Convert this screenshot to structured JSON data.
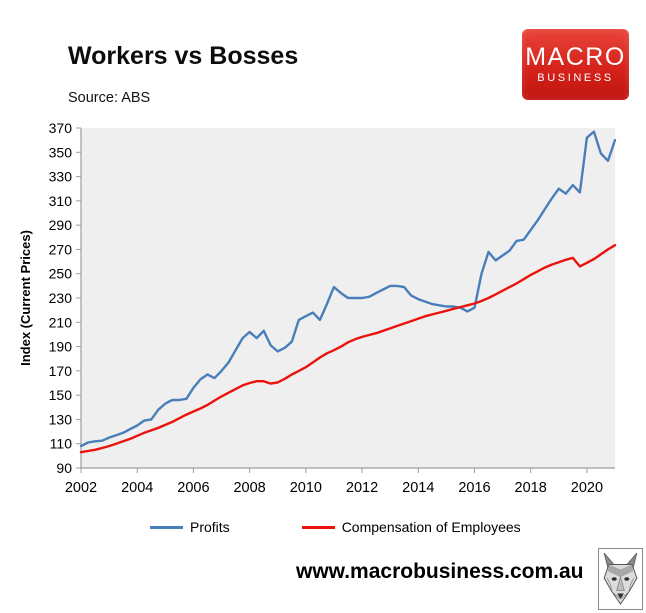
{
  "header": {
    "title": "Workers vs Bosses",
    "source": "Source: ABS",
    "logo": {
      "line1": "MACRO",
      "line2": "BUSINESS",
      "bg_color": "#d6231b",
      "text_color": "#ffffff"
    }
  },
  "chart_data": {
    "type": "line",
    "title": "Workers vs Bosses",
    "xlabel": "",
    "ylabel": "Index (Current Prices)",
    "ylim": [
      90,
      370
    ],
    "ytick_step": 20,
    "xlim": [
      2002,
      2021
    ],
    "xticks": [
      2002,
      2004,
      2006,
      2008,
      2010,
      2012,
      2014,
      2016,
      2018,
      2020
    ],
    "x_start": 2002,
    "x_step": 0.25,
    "grid": false,
    "plot_bg": "#efefef",
    "axis_color": "#9e9e9e",
    "legend_position": "bottom",
    "series": [
      {
        "name": "Profits",
        "color": "#4a7ebb",
        "values": [
          108,
          111,
          112,
          112.5,
          115,
          117,
          119,
          122,
          125,
          129,
          130,
          138,
          143,
          146,
          146,
          147,
          156,
          163,
          167,
          164,
          170,
          177,
          187,
          197,
          202,
          197,
          203,
          191,
          186,
          189,
          194,
          212,
          215,
          218,
          212,
          225,
          239,
          234,
          230,
          230,
          230,
          231,
          234,
          237,
          240,
          240,
          239,
          232,
          229,
          227,
          225,
          224,
          223,
          223,
          222,
          219,
          222,
          250,
          268,
          261,
          265,
          269,
          277,
          278,
          286,
          294,
          303,
          312,
          320,
          316,
          323,
          317,
          362,
          367,
          349,
          343,
          360
        ]
      },
      {
        "name": "Compensation of Employees",
        "color": "#eb120c",
        "values": [
          103,
          104,
          105,
          106.5,
          108,
          110,
          112,
          114,
          116.5,
          119,
          121,
          123,
          125.5,
          128,
          131,
          134,
          136.5,
          139,
          142,
          145.5,
          149,
          152,
          155,
          158,
          160,
          161.5,
          161.5,
          159.5,
          160.5,
          163.5,
          167,
          170,
          173,
          177,
          181,
          184.5,
          187,
          190,
          193.5,
          196,
          198,
          199.5,
          201,
          203,
          205,
          207,
          209,
          211,
          213,
          215,
          216.5,
          218,
          219.5,
          221,
          222.5,
          224,
          225.5,
          227.5,
          230,
          233,
          236,
          239,
          242,
          245.5,
          249,
          252,
          255,
          257.5,
          259.5,
          261.5,
          263,
          256,
          259,
          262,
          266,
          270,
          273.5
        ]
      }
    ]
  },
  "footer": {
    "url": "www.macrobusiness.com.au",
    "wolf_logo": "wolf-head"
  }
}
